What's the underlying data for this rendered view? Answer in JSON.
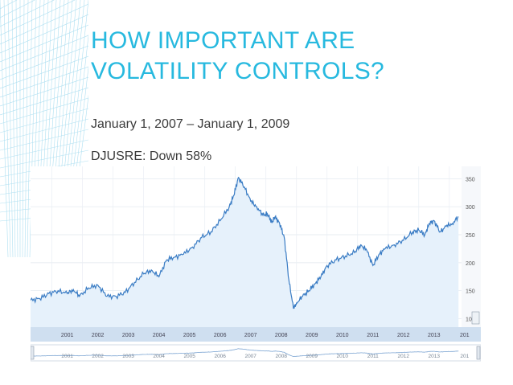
{
  "slide": {
    "title_line1": "HOW IMPORTANT ARE",
    "title_line2": "VOLATILITY CONTROLS?",
    "date_range": "January 1, 2007 – January 1, 2009",
    "note": "DJUSRE: Down 58%",
    "accent_color": "#27b9df"
  },
  "chart_data": {
    "type": "area",
    "title": "",
    "xlabel": "",
    "ylabel": "",
    "xlim": [
      2000.3,
      2014.4
    ],
    "ylim": [
      85,
      372
    ],
    "y_ticks": [
      350,
      300,
      250,
      200,
      150,
      100
    ],
    "x_ticks": [
      "2001",
      "2002",
      "2003",
      "2004",
      "2005",
      "2006",
      "2007",
      "2008",
      "2009",
      "2010",
      "2011",
      "2012",
      "2013",
      "201"
    ],
    "navigator_ticks": [
      "2001",
      "2002",
      "2003",
      "2004",
      "2005",
      "2006",
      "2007",
      "2008",
      "2009",
      "2010",
      "2011",
      "2012",
      "2013",
      "201"
    ],
    "grid": true,
    "y_axis_position": "right",
    "line_color": "#3a7cc4",
    "fill_color": "#e6f1fb",
    "x": [
      2000.3,
      2000.6,
      2000.9,
      2001.2,
      2001.5,
      2001.7,
      2001.9,
      2002.2,
      2002.5,
      2002.8,
      2003.1,
      2003.4,
      2003.7,
      2004.0,
      2004.25,
      2004.5,
      2004.75,
      2005.0,
      2005.3,
      2005.6,
      2005.9,
      2006.2,
      2006.5,
      2006.8,
      2006.95,
      2007.1,
      2007.3,
      2007.5,
      2007.7,
      2007.9,
      2008.05,
      2008.2,
      2008.3,
      2008.45,
      2008.6,
      2008.75,
      2008.9,
      2009.0,
      2009.2,
      2009.4,
      2009.6,
      2009.8,
      2010.0,
      2010.3,
      2010.6,
      2010.9,
      2011.1,
      2011.3,
      2011.5,
      2011.7,
      2011.9,
      2012.2,
      2012.5,
      2012.8,
      2013.0,
      2013.2,
      2013.35,
      2013.5,
      2013.7,
      2013.9,
      2014.1,
      2014.3
    ],
    "values": [
      133,
      136,
      145,
      150,
      145,
      152,
      140,
      155,
      160,
      140,
      140,
      147,
      165,
      180,
      187,
      175,
      205,
      210,
      215,
      228,
      245,
      255,
      275,
      300,
      320,
      352,
      335,
      310,
      300,
      285,
      287,
      272,
      282,
      270,
      245,
      170,
      118,
      128,
      140,
      150,
      162,
      175,
      195,
      205,
      212,
      218,
      232,
      222,
      195,
      215,
      225,
      232,
      240,
      255,
      258,
      250,
      270,
      275,
      255,
      265,
      270,
      282
    ]
  }
}
